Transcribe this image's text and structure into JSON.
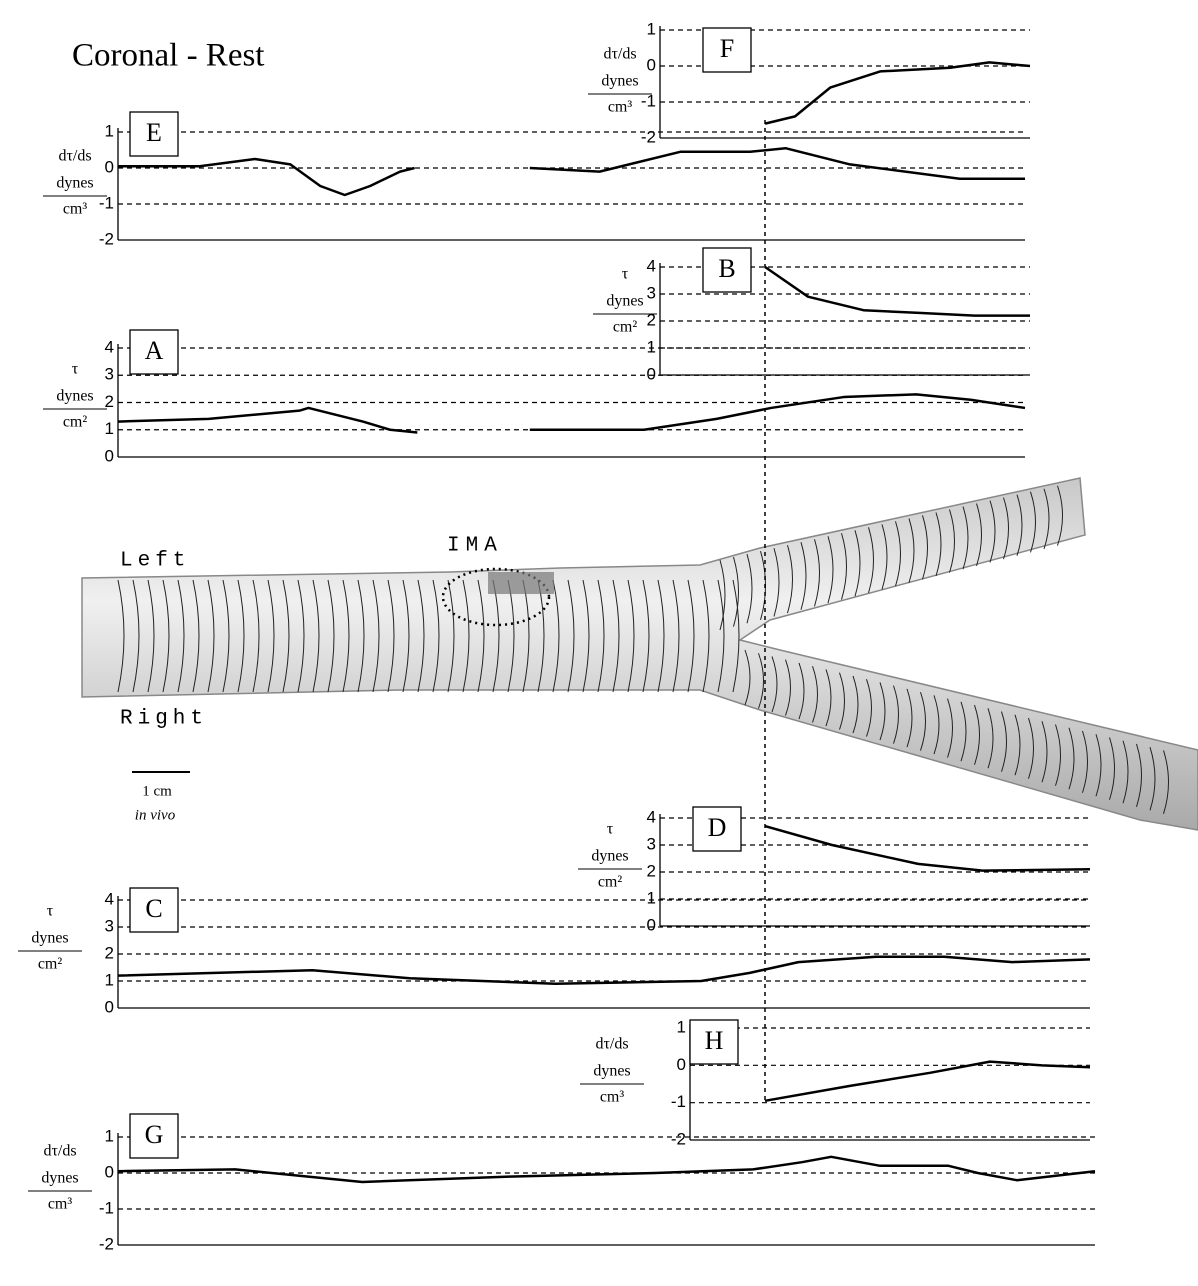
{
  "figure": {
    "title": "Coronal - Rest",
    "left": "Left",
    "right": "Right",
    "ima": "IMA",
    "scale": "1 cm",
    "scale_note": "in vivo"
  },
  "chart_data": [
    {
      "type": "line",
      "label": "E",
      "ylabel": [
        "dτ/ds",
        "dynes",
        "cm³"
      ],
      "ylim": [
        -2,
        1
      ],
      "yticks": [
        1,
        0,
        -1,
        -2
      ],
      "xlim": [
        0,
        100
      ],
      "grid": true,
      "color": "#000000",
      "x": [
        0,
        9,
        15.1,
        19,
        22.3,
        25,
        27.8,
        31.1,
        32.7,
        39,
        45.4,
        53.1,
        62,
        69.7,
        73.6,
        80.7,
        92.8,
        100
      ],
      "values": [
        0.05,
        0.05,
        0.25,
        0.1,
        -0.5,
        -0.75,
        -0.5,
        -0.1,
        0,
        null,
        0,
        -0.1,
        0.45,
        0.45,
        0.55,
        0.1,
        -0.3,
        -0.3
      ]
    },
    {
      "type": "line",
      "label": "A",
      "ylabel": [
        "τ",
        "dynes",
        "cm²"
      ],
      "ylim": [
        0,
        4
      ],
      "yticks": [
        4,
        3,
        2,
        1,
        0
      ],
      "xlim": [
        0,
        100
      ],
      "grid": true,
      "color": "#000000",
      "x": [
        0,
        10,
        20,
        21,
        27,
        30,
        33,
        39,
        45.4,
        58,
        66,
        72,
        80,
        88,
        94,
        100
      ],
      "values": [
        1.3,
        1.4,
        1.7,
        1.8,
        1.3,
        1.0,
        0.9,
        null,
        1.0,
        1.0,
        1.4,
        1.8,
        2.2,
        2.3,
        2.1,
        1.8
      ]
    },
    {
      "type": "line",
      "label": "F",
      "ylabel": [
        "dτ/ds",
        "dynes",
        "cm³"
      ],
      "ylim": [
        -2,
        1
      ],
      "yticks": [
        1,
        0,
        -1,
        -2
      ],
      "xlim": [
        0,
        100
      ],
      "grid": true,
      "color": "#000000",
      "x": [
        28.4,
        36.5,
        46,
        59.5,
        78.4,
        89,
        100
      ],
      "values": [
        -1.6,
        -1.4,
        -0.6,
        -0.15,
        -0.05,
        0.1,
        0
      ]
    },
    {
      "type": "line",
      "label": "B",
      "ylabel": [
        "τ",
        "dynes",
        "cm²"
      ],
      "ylim": [
        0,
        4
      ],
      "yticks": [
        4,
        3,
        2,
        1,
        0
      ],
      "xlim": [
        0,
        100
      ],
      "grid": true,
      "color": "#000000",
      "x": [
        28.4,
        40,
        55,
        70,
        85,
        100
      ],
      "values": [
        4,
        2.9,
        2.4,
        2.3,
        2.2,
        2.2
      ]
    },
    {
      "type": "line",
      "label": "D",
      "ylabel": [
        "τ",
        "dynes",
        "cm²"
      ],
      "ylim": [
        0,
        4
      ],
      "yticks": [
        4,
        3,
        2,
        1,
        0
      ],
      "xlim": [
        0,
        100
      ],
      "grid": true,
      "color": "#000000",
      "x": [
        24.4,
        40,
        60,
        75,
        100
      ],
      "values": [
        3.7,
        3.0,
        2.3,
        2.05,
        2.1
      ]
    },
    {
      "type": "line",
      "label": "C",
      "ylabel": [
        "τ",
        "dynes",
        "cm²"
      ],
      "ylim": [
        0,
        4
      ],
      "yticks": [
        4,
        3,
        2,
        1,
        0
      ],
      "xlim": [
        0,
        100
      ],
      "grid": true,
      "color": "#000000",
      "x": [
        0,
        20,
        30,
        45,
        60,
        65,
        70,
        78,
        85,
        92,
        100
      ],
      "values": [
        1.2,
        1.4,
        1.1,
        0.9,
        1.0,
        1.3,
        1.7,
        1.9,
        1.9,
        1.7,
        1.8
      ]
    },
    {
      "type": "line",
      "label": "H",
      "ylabel": [
        "dτ/ds",
        "dynes",
        "cm³"
      ],
      "ylim": [
        -2,
        1
      ],
      "yticks": [
        1,
        0,
        -1,
        -2
      ],
      "xlim": [
        0,
        100
      ],
      "grid": true,
      "color": "#000000",
      "x": [
        18.75,
        40,
        60,
        75,
        88,
        100
      ],
      "values": [
        -0.95,
        -0.55,
        -0.2,
        0.1,
        0,
        -0.05
      ]
    },
    {
      "type": "line",
      "label": "G",
      "ylabel": [
        "dτ/ds",
        "dynes",
        "cm³"
      ],
      "ylim": [
        -2,
        1
      ],
      "yticks": [
        1,
        0,
        -1,
        -2
      ],
      "xlim": [
        0,
        100
      ],
      "grid": true,
      "color": "#000000",
      "x": [
        0,
        12,
        25,
        40,
        55,
        65,
        70,
        73,
        78,
        85,
        88,
        92,
        100
      ],
      "values": [
        0.05,
        0.1,
        -0.25,
        -0.1,
        0,
        0.1,
        0.3,
        0.45,
        0.2,
        0.2,
        0,
        -0.2,
        0.05
      ]
    }
  ]
}
